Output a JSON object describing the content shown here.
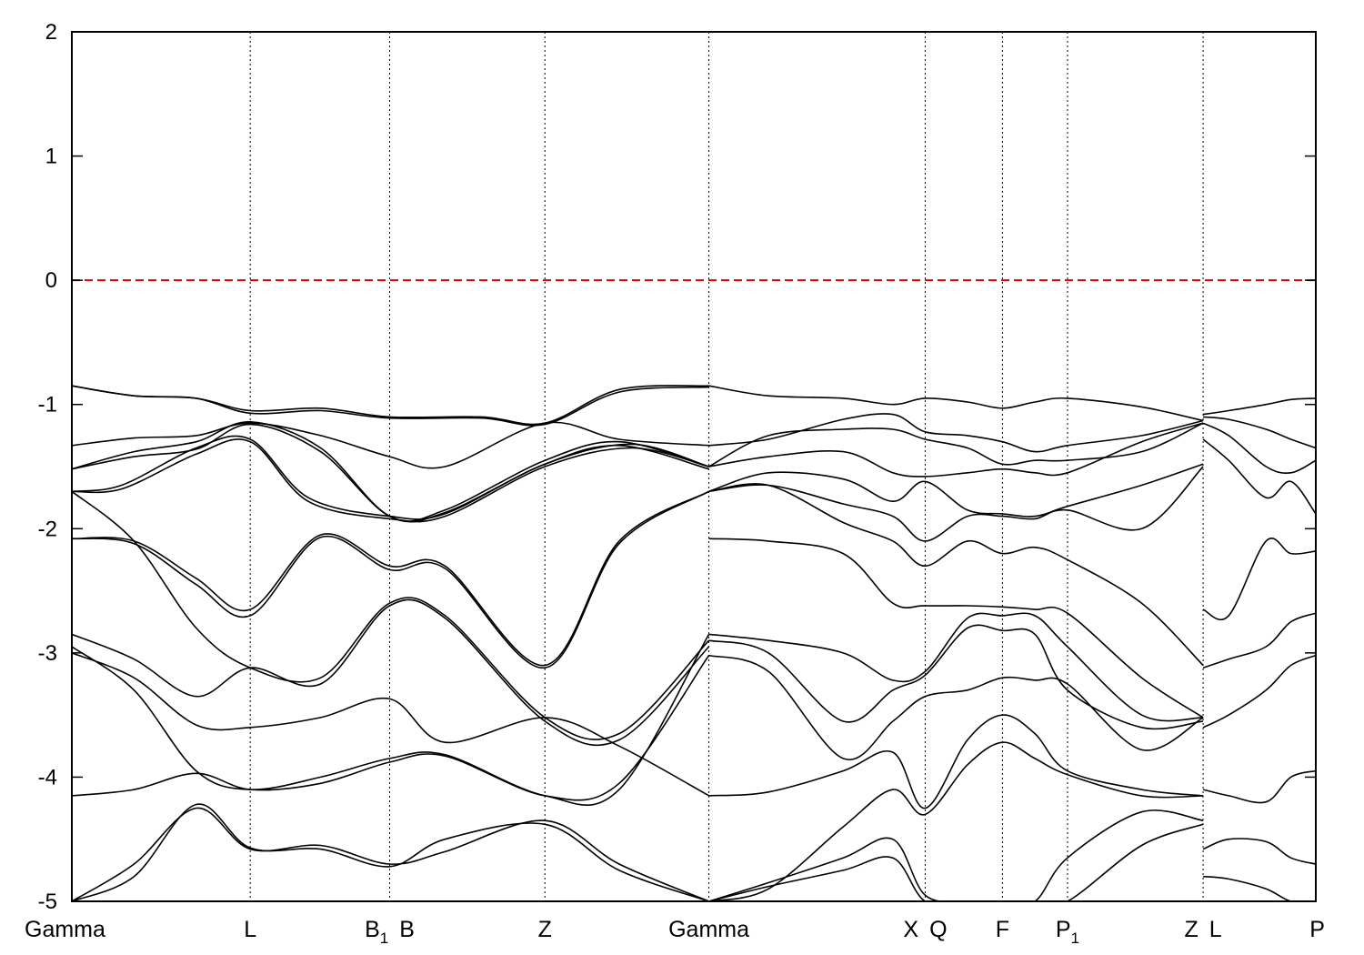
{
  "chart_data": {
    "type": "line",
    "title": "",
    "xlabel": "",
    "ylabel": "",
    "ylim": [
      -5,
      2
    ],
    "yticks": [
      -5,
      -4,
      -3,
      -2,
      -1,
      0,
      1,
      2
    ],
    "grid": false,
    "fermi_level": {
      "value": 0,
      "color": "#dd0000"
    },
    "band_color": "#000000",
    "kpoints": [
      {
        "label": "Gamma",
        "sub": "",
        "x": 0.0
      },
      {
        "label": "L",
        "sub": "",
        "x": 0.1434
      },
      {
        "label": "B",
        "sub": "1",
        "x": 0.2555
      },
      {
        "label": "B",
        "sub": "",
        "x": 0.2555
      },
      {
        "label": "Z",
        "sub": "",
        "x": 0.3803
      },
      {
        "label": "Gamma",
        "sub": "",
        "x": 0.5121
      },
      {
        "label": "X",
        "sub": "",
        "x": 0.686
      },
      {
        "label": "Q",
        "sub": "",
        "x": 0.686
      },
      {
        "label": "F",
        "sub": "",
        "x": 0.7481
      },
      {
        "label": "P",
        "sub": "1",
        "x": 0.8004
      },
      {
        "label": "Z",
        "sub": "",
        "x": 0.9094
      },
      {
        "label": "L",
        "sub": "",
        "x": 0.9094
      },
      {
        "label": "P",
        "sub": "",
        "x": 1.0
      }
    ],
    "separators": [
      0.1434,
      0.2555,
      0.3803,
      0.5121,
      0.686,
      0.7481,
      0.8004,
      0.9094
    ],
    "series": [
      {
        "x": [
          0.0,
          0.05,
          0.1,
          0.1434,
          0.2,
          0.2555,
          0.33,
          0.3803,
          0.44,
          0.5121
        ],
        "values": [
          -0.85,
          -0.93,
          -0.95,
          -1.05,
          -1.03,
          -1.1,
          -1.1,
          -1.15,
          -0.88,
          -0.85
        ]
      },
      {
        "x": [
          0.0,
          0.05,
          0.1,
          0.1434,
          0.2,
          0.2555,
          0.33,
          0.3803,
          0.44,
          0.5121
        ],
        "values": [
          -0.85,
          -0.93,
          -0.95,
          -1.07,
          -1.05,
          -1.11,
          -1.11,
          -1.16,
          -0.9,
          -0.86
        ]
      },
      {
        "x": [
          0.0,
          0.05,
          0.1,
          0.1434,
          0.2,
          0.2555,
          0.3,
          0.3803,
          0.44,
          0.5121
        ],
        "values": [
          -1.33,
          -1.27,
          -1.25,
          -1.15,
          -1.25,
          -1.42,
          -1.5,
          -1.15,
          -1.28,
          -1.33
        ]
      },
      {
        "x": [
          0.0,
          0.05,
          0.1,
          0.1434,
          0.2,
          0.2555,
          0.3,
          0.3803,
          0.44,
          0.5121
        ],
        "values": [
          -1.52,
          -1.38,
          -1.3,
          -1.14,
          -1.35,
          -1.9,
          -1.85,
          -1.45,
          -1.3,
          -1.5
        ]
      },
      {
        "x": [
          0.0,
          0.05,
          0.1,
          0.1434,
          0.2,
          0.2555,
          0.3,
          0.3803,
          0.44,
          0.5121
        ],
        "values": [
          -1.52,
          -1.42,
          -1.36,
          -1.16,
          -1.38,
          -1.9,
          -1.87,
          -1.48,
          -1.33,
          -1.52
        ]
      },
      {
        "x": [
          0.0,
          0.04,
          0.1,
          0.1434,
          0.19,
          0.2555,
          0.3,
          0.3803,
          0.45,
          0.5121
        ],
        "values": [
          -1.7,
          -1.65,
          -1.35,
          -1.28,
          -1.75,
          -1.9,
          -1.88,
          -1.48,
          -1.32,
          -1.5
        ]
      },
      {
        "x": [
          0.0,
          0.04,
          0.1,
          0.1434,
          0.19,
          0.2555,
          0.3,
          0.3803,
          0.45,
          0.5121
        ],
        "values": [
          -1.7,
          -1.68,
          -1.4,
          -1.3,
          -1.78,
          -1.92,
          -1.9,
          -1.5,
          -1.35,
          -1.5
        ]
      },
      {
        "x": [
          0.0,
          0.05,
          0.1,
          0.1434,
          0.2,
          0.2555,
          0.3,
          0.3803,
          0.44,
          0.5121
        ],
        "values": [
          -2.08,
          -2.1,
          -2.4,
          -2.65,
          -2.05,
          -2.3,
          -2.3,
          -3.1,
          -2.1,
          -1.7
        ]
      },
      {
        "x": [
          0.0,
          0.05,
          0.1,
          0.1434,
          0.2,
          0.2555,
          0.3,
          0.3803,
          0.44,
          0.5121
        ],
        "values": [
          -2.08,
          -2.12,
          -2.45,
          -2.7,
          -2.07,
          -2.33,
          -2.32,
          -3.12,
          -2.12,
          -1.7
        ]
      },
      {
        "x": [
          0.0,
          0.05,
          0.1,
          0.1434,
          0.2,
          0.2555,
          0.3,
          0.3803,
          0.44,
          0.5121
        ],
        "values": [
          -1.7,
          -2.1,
          -2.8,
          -3.12,
          -3.2,
          -2.6,
          -2.7,
          -3.52,
          -3.65,
          -2.9
        ]
      },
      {
        "x": [
          0.0,
          0.05,
          0.1,
          0.1434,
          0.2,
          0.2555,
          0.3,
          0.3803,
          0.44,
          0.5121
        ],
        "values": [
          -2.85,
          -3.05,
          -3.35,
          -3.12,
          -3.25,
          -2.62,
          -2.72,
          -3.55,
          -3.7,
          -2.95
        ]
      },
      {
        "x": [
          0.0,
          0.05,
          0.1,
          0.1434,
          0.2,
          0.2555,
          0.3,
          0.3803,
          0.44,
          0.5121
        ],
        "values": [
          -3.0,
          -3.2,
          -3.58,
          -3.6,
          -3.52,
          -3.37,
          -3.72,
          -3.52,
          -3.75,
          -4.15
        ]
      },
      {
        "x": [
          0.0,
          0.05,
          0.1,
          0.1434,
          0.2,
          0.2555,
          0.3,
          0.3803,
          0.44,
          0.5121
        ],
        "values": [
          -2.95,
          -3.3,
          -3.95,
          -4.1,
          -4.0,
          -3.85,
          -3.82,
          -4.15,
          -4.1,
          -2.85
        ]
      },
      {
        "x": [
          0.0,
          0.05,
          0.1,
          0.1434,
          0.2,
          0.2555,
          0.3,
          0.3803,
          0.44,
          0.5121
        ],
        "values": [
          -4.15,
          -4.1,
          -3.97,
          -4.1,
          -4.05,
          -3.88,
          -3.83,
          -4.15,
          -4.05,
          -3.02
        ]
      },
      {
        "x": [
          0.0,
          0.05,
          0.1,
          0.1434,
          0.2,
          0.2555,
          0.3,
          0.3803,
          0.44,
          0.5121
        ],
        "values": [
          -5.0,
          -4.7,
          -4.25,
          -4.58,
          -4.55,
          -4.7,
          -4.6,
          -4.35,
          -4.7,
          -5.0
        ]
      },
      {
        "x": [
          0.0,
          0.05,
          0.1,
          0.1434,
          0.2,
          0.2555,
          0.3,
          0.3803,
          0.44,
          0.5121
        ],
        "values": [
          -5.0,
          -4.8,
          -4.22,
          -4.57,
          -4.58,
          -4.72,
          -4.5,
          -4.38,
          -4.75,
          -5.0
        ]
      },
      {
        "x": [
          0.5121,
          0.56,
          0.62,
          0.66,
          0.686,
          0.72,
          0.7481,
          0.7742,
          0.8004,
          0.86,
          0.9094
        ],
        "values": [
          -0.85,
          -0.93,
          -0.95,
          -1.0,
          -0.95,
          -0.98,
          -1.03,
          -0.98,
          -0.95,
          -1.02,
          -1.13
        ]
      },
      {
        "x": [
          0.5121,
          0.56,
          0.62,
          0.66,
          0.686,
          0.72,
          0.7481,
          0.7742,
          0.8004,
          0.86,
          0.9094
        ],
        "values": [
          -1.33,
          -1.28,
          -1.12,
          -1.08,
          -1.22,
          -1.25,
          -1.3,
          -1.38,
          -1.33,
          -1.25,
          -1.13
        ]
      },
      {
        "x": [
          0.5121,
          0.56,
          0.62,
          0.66,
          0.686,
          0.72,
          0.7481,
          0.7742,
          0.8004,
          0.86,
          0.9094
        ],
        "values": [
          -1.5,
          -1.25,
          -1.2,
          -1.2,
          -1.28,
          -1.35,
          -1.48,
          -1.45,
          -1.45,
          -1.38,
          -1.15
        ]
      },
      {
        "x": [
          0.5121,
          0.56,
          0.62,
          0.66,
          0.686,
          0.72,
          0.7481,
          0.7742,
          0.8004,
          0.86,
          0.9094
        ],
        "values": [
          -1.5,
          -1.42,
          -1.38,
          -1.55,
          -1.58,
          -1.55,
          -1.52,
          -1.55,
          -1.55,
          -1.3,
          -1.15
        ]
      },
      {
        "x": [
          0.5121,
          0.56,
          0.62,
          0.66,
          0.686,
          0.72,
          0.7481,
          0.7742,
          0.8004,
          0.86,
          0.9094
        ],
        "values": [
          -1.7,
          -1.55,
          -1.6,
          -1.78,
          -1.62,
          -1.85,
          -1.88,
          -1.9,
          -1.82,
          -1.65,
          -1.48
        ]
      },
      {
        "x": [
          0.5121,
          0.56,
          0.62,
          0.66,
          0.686,
          0.72,
          0.7481,
          0.7742,
          0.8004,
          0.86,
          0.9094
        ],
        "values": [
          -1.7,
          -1.65,
          -1.8,
          -1.9,
          -2.1,
          -1.9,
          -1.9,
          -1.92,
          -1.85,
          -2.0,
          -1.5
        ]
      },
      {
        "x": [
          0.5121,
          0.56,
          0.62,
          0.66,
          0.686,
          0.72,
          0.7481,
          0.7742,
          0.8004,
          0.86,
          0.9094
        ],
        "values": [
          -1.7,
          -1.65,
          -1.95,
          -2.1,
          -2.3,
          -2.1,
          -2.2,
          -2.15,
          -2.25,
          -2.6,
          -3.1
        ]
      },
      {
        "x": [
          0.5121,
          0.56,
          0.62,
          0.66,
          0.686,
          0.72,
          0.7481,
          0.7742,
          0.8004,
          0.86,
          0.9094
        ],
        "values": [
          -2.08,
          -2.1,
          -2.2,
          -2.6,
          -2.62,
          -2.62,
          -2.63,
          -2.65,
          -2.68,
          -3.2,
          -3.52
        ]
      },
      {
        "x": [
          0.5121,
          0.56,
          0.62,
          0.66,
          0.686,
          0.72,
          0.7481,
          0.7742,
          0.8004,
          0.86,
          0.9094
        ],
        "values": [
          -2.85,
          -2.9,
          -3.0,
          -3.22,
          -3.15,
          -2.72,
          -2.7,
          -2.7,
          -2.95,
          -3.5,
          -3.52
        ]
      },
      {
        "x": [
          0.5121,
          0.56,
          0.62,
          0.66,
          0.686,
          0.72,
          0.7481,
          0.7742,
          0.8004,
          0.86,
          0.9094
        ],
        "values": [
          -2.9,
          -3.0,
          -3.55,
          -3.3,
          -3.18,
          -2.8,
          -2.82,
          -2.85,
          -3.3,
          -3.6,
          -3.55
        ]
      },
      {
        "x": [
          0.5121,
          0.56,
          0.62,
          0.66,
          0.686,
          0.72,
          0.7481,
          0.7742,
          0.8004,
          0.86,
          0.9094
        ],
        "values": [
          -3.02,
          -3.15,
          -3.85,
          -3.55,
          -3.35,
          -3.3,
          -3.2,
          -3.22,
          -3.25,
          -3.78,
          -3.52
        ]
      },
      {
        "x": [
          0.5121,
          0.56,
          0.62,
          0.66,
          0.686,
          0.72,
          0.7481,
          0.7742,
          0.8004,
          0.86,
          0.9094
        ],
        "values": [
          -4.15,
          -4.12,
          -3.95,
          -3.8,
          -4.25,
          -3.7,
          -3.5,
          -3.65,
          -3.95,
          -4.1,
          -4.15
        ]
      },
      {
        "x": [
          0.5121,
          0.56,
          0.62,
          0.66,
          0.686,
          0.72,
          0.7481,
          0.7742,
          0.8004,
          0.86,
          0.9094
        ],
        "values": [
          -5.0,
          -4.9,
          -4.4,
          -4.1,
          -4.3,
          -3.9,
          -3.72,
          -3.85,
          -3.98,
          -4.15,
          -4.15
        ]
      },
      {
        "x": [
          0.5121,
          0.56,
          0.62,
          0.66,
          0.686,
          0.72,
          0.7481,
          0.7742,
          0.8004,
          0.86,
          0.9094
        ],
        "values": [
          -5.0,
          -4.85,
          -4.65,
          -4.5,
          -4.95,
          -5.0,
          -5.0,
          -5.0,
          -4.65,
          -4.28,
          -4.35
        ]
      },
      {
        "x": [
          0.5121,
          0.56,
          0.62,
          0.66,
          0.686,
          0.72,
          0.7481,
          0.7742,
          0.8004,
          0.86,
          0.9094
        ],
        "values": [
          -5.0,
          -4.88,
          -4.75,
          -4.65,
          -5.0,
          -5.0,
          -5.0,
          -5.0,
          -5.0,
          -4.55,
          -4.38
        ]
      },
      {
        "x": [
          0.9094,
          0.93,
          0.96,
          0.98,
          1.0
        ],
        "values": [
          -1.08,
          -1.05,
          -1.0,
          -0.96,
          -0.95
        ]
      },
      {
        "x": [
          0.9094,
          0.93,
          0.96,
          0.98,
          1.0
        ],
        "values": [
          -1.1,
          -1.12,
          -1.2,
          -1.28,
          -1.35
        ]
      },
      {
        "x": [
          0.9094,
          0.93,
          0.96,
          0.98,
          1.0
        ],
        "values": [
          -1.15,
          -1.25,
          -1.5,
          -1.55,
          -1.45
        ]
      },
      {
        "x": [
          0.9094,
          0.93,
          0.96,
          0.98,
          1.0
        ],
        "values": [
          -1.28,
          -1.45,
          -1.75,
          -1.62,
          -1.88
        ]
      },
      {
        "x": [
          0.9094,
          0.93,
          0.96,
          0.98,
          1.0
        ],
        "values": [
          -2.65,
          -2.7,
          -2.1,
          -2.2,
          -2.18
        ]
      },
      {
        "x": [
          0.9094,
          0.93,
          0.96,
          0.98,
          1.0
        ],
        "values": [
          -3.12,
          -3.05,
          -2.95,
          -2.75,
          -2.68
        ]
      },
      {
        "x": [
          0.9094,
          0.93,
          0.96,
          0.98,
          1.0
        ],
        "values": [
          -3.6,
          -3.5,
          -3.3,
          -3.1,
          -3.02
        ]
      },
      {
        "x": [
          0.9094,
          0.93,
          0.96,
          0.98,
          1.0
        ],
        "values": [
          -4.1,
          -4.15,
          -4.2,
          -4.0,
          -3.95
        ]
      },
      {
        "x": [
          0.9094,
          0.93,
          0.96,
          0.98,
          1.0
        ],
        "values": [
          -4.58,
          -4.5,
          -4.52,
          -4.65,
          -4.7
        ]
      },
      {
        "x": [
          0.9094,
          0.93,
          0.96,
          0.98,
          1.0
        ],
        "values": [
          -4.8,
          -4.82,
          -4.9,
          -5.0,
          -5.0
        ]
      }
    ]
  }
}
